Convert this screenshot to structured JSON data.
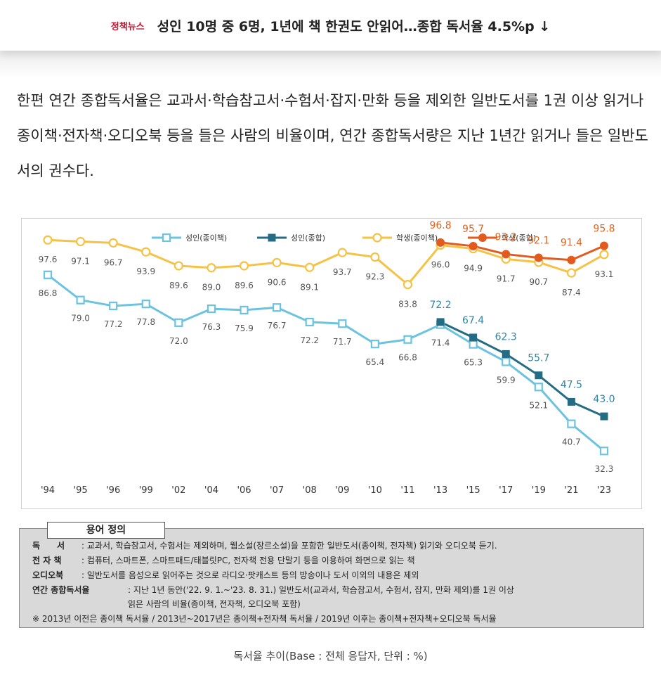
{
  "header": {
    "tag": "정책뉴스",
    "title": "성인 10명 중 6명, 1년에 책 한권도 안읽어…종합 독서율 4.5%p ↓"
  },
  "body_text": "한편 연간 종합독서율은 교과서·학습참고서·수험서·잡지·만화 등을 제외한 일반도서를 1권 이상 읽거나 종이책·전자책·오디오북 등을 들은 사람의 비율이며, 연간 종합독서량은 지난 1년간 읽거나 들은 일반도서의 권수다.",
  "chart_data": {
    "type": "line",
    "categories": [
      "'94",
      "'95",
      "'96",
      "'99",
      "'02",
      "'04",
      "'06",
      "'07",
      "'08",
      "'09",
      "'10",
      "'11",
      "'13",
      "'15",
      "'17",
      "'19",
      "'21",
      "'23"
    ],
    "series": [
      {
        "name": "성인(종이책)",
        "color": "#6cc3e0",
        "marker": "hollow-square",
        "values": [
          86.8,
          79.0,
          77.2,
          77.8,
          72.0,
          76.3,
          75.9,
          76.7,
          72.2,
          71.7,
          65.4,
          66.8,
          71.4,
          65.3,
          59.9,
          52.1,
          40.7,
          32.3
        ]
      },
      {
        "name": "성인(종합)",
        "color": "#246b84",
        "marker": "filled-square",
        "values": [
          null,
          null,
          null,
          null,
          null,
          null,
          null,
          null,
          null,
          null,
          null,
          null,
          72.2,
          67.4,
          62.3,
          55.7,
          47.5,
          43.0
        ]
      },
      {
        "name": "학생(종이책)",
        "color": "#f6c244",
        "marker": "hollow-circle",
        "values": [
          97.6,
          97.1,
          96.7,
          93.9,
          89.6,
          89.0,
          89.6,
          90.6,
          89.1,
          93.7,
          92.3,
          83.8,
          96.0,
          94.9,
          91.7,
          90.7,
          87.4,
          93.1
        ]
      },
      {
        "name": "학생(종합)",
        "color": "#e15a1e",
        "marker": "filled-circle",
        "values": [
          null,
          null,
          null,
          null,
          null,
          null,
          null,
          null,
          null,
          null,
          null,
          null,
          96.8,
          95.7,
          93.2,
          92.1,
          91.4,
          95.8
        ]
      }
    ],
    "ylim": [
      28,
      102
    ],
    "grid": false,
    "legend": "top-center"
  },
  "terms": {
    "title": "용어 정의",
    "rows": [
      {
        "key": "독　　서",
        "text": ": 교과서, 학습참고서, 수험서는 제외하며, 웹소설(장르소설)을 포함한 일반도서(종이책, 전자책) 읽기와 오디오북 듣기."
      },
      {
        "key": "전 자 책",
        "text": ": 컴퓨터, 스마트폰, 스마트패드/태블릿PC, 전자책 전용 단말기 등을 이용하여 화면으로 읽는 책"
      },
      {
        "key": "오디오북",
        "text": ": 일반도서를 음성으로 읽어주는 것으로 라디오·팟캐스트 등의 방송이나 도서 이외의 내용은 제외"
      },
      {
        "key": "연간 종합독서율",
        "text": ": 지난 1년 동안('22. 9. 1.~'23. 8. 31.) 일반도서(교과서, 학습참고서, 수험서, 잡지, 만화 제외)를 1권 이상"
      },
      {
        "key": "",
        "text": "읽은 사람의 비율(종이책, 전자책, 오디오북 포함)"
      },
      {
        "key": "",
        "text": "※ 2013년 이전은 종이책 독서율 / 2013년~2017년은 종이책+전자책 독서율 / 2019년 이후는 종이책+전자책+오디오북 독서율"
      }
    ]
  },
  "caption": "독서율 추이(Base : 전체 응답자, 단위 : %)"
}
